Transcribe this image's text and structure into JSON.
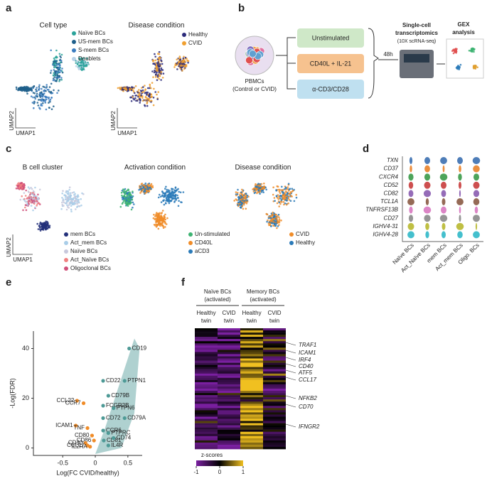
{
  "panel_labels": [
    "a",
    "b",
    "c",
    "d",
    "e",
    "f"
  ],
  "a": {
    "axis_x": "UMAP1",
    "axis_y": "UMAP2",
    "cell_type": {
      "title": "Cell type",
      "legend": [
        {
          "name": "Naïve BCs",
          "color": "#2aa39a"
        },
        {
          "name": "US-mem BCs",
          "color": "#1f5f8b"
        },
        {
          "name": "S-mem BCs",
          "color": "#3b7cc0"
        },
        {
          "name": "Doublets",
          "color": "#b8d2e8"
        }
      ]
    },
    "disease": {
      "title": "Disease condition",
      "legend": [
        {
          "name": "Healthy",
          "color": "#2b2a7a"
        },
        {
          "name": "CVID",
          "color": "#f0a030"
        }
      ]
    }
  },
  "b": {
    "source": [
      "PBMCs",
      "(Control or CVID)"
    ],
    "conditions": [
      {
        "name": "Unstimulated",
        "color": "#cfe8c8"
      },
      {
        "name": "CD40L + IL-21",
        "color": "#f6c28f"
      },
      {
        "name": "α-CD3/CD28",
        "color": "#bfe0f0"
      }
    ],
    "time": "48h",
    "method": [
      "Single-cell",
      "transcriptomics",
      "(10X scRNA-seq)"
    ],
    "analysis": [
      "GEX",
      "analysis"
    ]
  },
  "c": {
    "axis_x": "UMAP1",
    "axis_y": "UMAP2",
    "cluster": {
      "title": "B cell cluster",
      "legend": [
        {
          "name": "mem BCs",
          "color": "#23307a"
        },
        {
          "name": "Act_mem BCs",
          "color": "#a9cde8"
        },
        {
          "name": "Naïve BCs",
          "color": "#c8c8dc"
        },
        {
          "name": "Act_Naïve BCs",
          "color": "#f08080"
        },
        {
          "name": "Oligoclonal BCs",
          "color": "#d0507a"
        }
      ]
    },
    "activation": {
      "title": "Activation condition",
      "legend": [
        {
          "name": "Un-stimulated",
          "color": "#3cb371"
        },
        {
          "name": "CD40L",
          "color": "#f08c28"
        },
        {
          "name": "aCD3",
          "color": "#2a7ab8"
        }
      ]
    },
    "disease": {
      "title": "Disease condition",
      "legend": [
        {
          "name": "CVID",
          "color": "#f08c28"
        },
        {
          "name": "Healthy",
          "color": "#2a7ab8"
        }
      ]
    }
  },
  "d": {
    "genes": [
      "TXN",
      "CD37",
      "CXCR4",
      "CD52",
      "CD82",
      "TCL1A",
      "TNFRSF13B",
      "CD27",
      "IGHV4-31",
      "IGHV4-28"
    ],
    "colors": [
      "#3b6fb0",
      "#e8822a",
      "#3a9a48",
      "#c83c3c",
      "#8a5cb0",
      "#8a5a44",
      "#d878c0",
      "#8a8a8a",
      "#b8b830",
      "#30b8c8"
    ],
    "groups": [
      "Naïve BCs",
      "Act_Naïve BCs",
      "mem BCs",
      "Act_mem BCs",
      "Oligo. BCs"
    ]
  },
  "chart_data": {
    "type": "scatter",
    "xlabel": "Log(FC CVID/healthy)",
    "ylabel": "-Log(FDR)",
    "xlim": [
      -0.95,
      0.72
    ],
    "ylim": [
      -3,
      47
    ],
    "xticks": [
      -0.5,
      0,
      0.5
    ],
    "yticks": [
      0,
      20,
      40
    ],
    "series": [
      {
        "color": "#4e9a96",
        "labels": [
          "CD19",
          "PTPN1",
          "CD22",
          "CD79B",
          "FCGR2B",
          "PTPN6",
          "CD72",
          "CD79A",
          "CCR6",
          "PTPRC",
          "CD81",
          "CD74",
          "IL4R"
        ],
        "x": [
          0.52,
          0.45,
          0.12,
          0.2,
          0.12,
          0.28,
          0.12,
          0.45,
          0.12,
          0.2,
          0.13,
          0.28,
          0.2
        ],
        "values": [
          40,
          27,
          27,
          21,
          17,
          16,
          12,
          12,
          7,
          6,
          3,
          4,
          1
        ]
      },
      {
        "color": "#f08c28",
        "labels": [
          "CCL22",
          "CCR7",
          "ICAM1",
          "TNF",
          "CD80",
          "CD86",
          "CD40",
          "CCL17",
          "IL2RA"
        ],
        "x": [
          -0.28,
          -0.18,
          -0.3,
          -0.12,
          -0.05,
          -0.02,
          -0.15,
          -0.12,
          -0.08
        ],
        "values": [
          19,
          18,
          9,
          8,
          5,
          3,
          2,
          1,
          0.5
        ]
      }
    ]
  },
  "f": {
    "groups": [
      [
        "Naïve BCs",
        "(activated)"
      ],
      [
        "Memory BCs",
        "(activated)"
      ]
    ],
    "columns": [
      [
        "Healthy",
        "twin"
      ],
      [
        "CVID",
        "twin"
      ],
      [
        "Healthy",
        "twin"
      ],
      [
        "CVID",
        "twin"
      ]
    ],
    "genes": [
      "TRAF1",
      "ICAM1",
      "IRF4",
      "CD40",
      "ATF5",
      "CCL17",
      "NFKB2",
      "CD70",
      "IFNGR2"
    ],
    "scale_title": "z-scores",
    "scale_ticks": [
      -1,
      0,
      1
    ]
  }
}
